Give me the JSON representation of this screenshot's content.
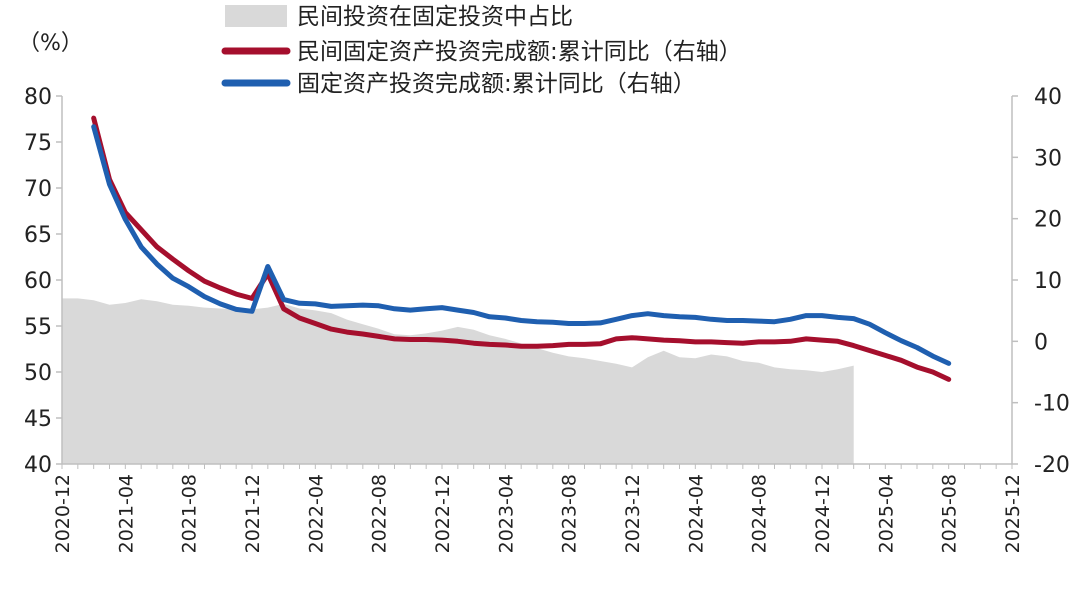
{
  "chart_data": {
    "type": "area+line",
    "unit_label": "（%）",
    "left_axis": {
      "min": 40,
      "max": 80,
      "ticks": [
        40,
        45,
        50,
        55,
        60,
        65,
        70,
        75,
        80
      ]
    },
    "right_axis": {
      "min": -20,
      "max": 40,
      "ticks": [
        -20,
        -10,
        0,
        10,
        20,
        30,
        40
      ]
    },
    "x_tick_labels": [
      "2020-12",
      "2021-04",
      "2021-08",
      "2021-12",
      "2022-04",
      "2022-08",
      "2022-12",
      "2023-04",
      "2023-08",
      "2023-12",
      "2024-04",
      "2024-08",
      "2024-12",
      "2025-04",
      "2025-08",
      "2025-12"
    ],
    "series": [
      {
        "name": "民间投资在固定投资中占比",
        "axis": "left",
        "type": "area",
        "color": "#d9d9d9",
        "start": "2020-12",
        "values": [
          58.0,
          58.0,
          57.8,
          57.3,
          57.5,
          57.9,
          57.7,
          57.3,
          57.2,
          57.0,
          56.9,
          56.8,
          56.8,
          57.0,
          57.4,
          56.9,
          56.7,
          56.4,
          55.7,
          55.2,
          54.7,
          54.1,
          54.0,
          54.2,
          54.5,
          54.9,
          54.6,
          54.0,
          53.6,
          53.1,
          52.6,
          52.1,
          51.7,
          51.5,
          51.2,
          50.9,
          50.5,
          51.6,
          52.3,
          51.6,
          51.5,
          51.9,
          51.7,
          51.2,
          51.0,
          50.5,
          50.3,
          50.2,
          50.0,
          50.3,
          50.7
        ]
      },
      {
        "name": "民间固定资产投资完成额:累计同比（右轴）",
        "axis": "right",
        "type": "line",
        "color": "#a50f2d",
        "start": "2021-02",
        "values": [
          36.4,
          26.4,
          21.0,
          18.2,
          15.4,
          13.4,
          11.5,
          9.8,
          8.7,
          7.7,
          7.0,
          11.0,
          5.3,
          3.8,
          2.9,
          2.0,
          1.5,
          1.2,
          0.8,
          0.4,
          0.3,
          0.3,
          0.2,
          0.0,
          -0.3,
          -0.5,
          -0.6,
          -0.8,
          -0.8,
          -0.7,
          -0.5,
          -0.5,
          -0.4,
          0.4,
          0.6,
          0.4,
          0.2,
          0.1,
          -0.1,
          -0.1,
          -0.2,
          -0.3,
          -0.1,
          -0.1,
          0.0,
          0.4,
          0.2,
          0.0,
          -0.7,
          -1.5,
          -2.3,
          -3.1,
          -4.2,
          -5.0,
          -6.2
        ]
      },
      {
        "name": "固定资产投资完成额:累计同比（右轴）",
        "axis": "right",
        "type": "line",
        "color": "#1f5fb0",
        "start": "2021-02",
        "values": [
          35.0,
          25.6,
          19.9,
          15.4,
          12.6,
          10.3,
          8.9,
          7.3,
          6.1,
          5.2,
          4.9,
          12.2,
          6.8,
          6.2,
          6.1,
          5.7,
          5.8,
          5.9,
          5.8,
          5.3,
          5.1,
          5.3,
          5.5,
          5.1,
          4.7,
          4.0,
          3.8,
          3.4,
          3.2,
          3.1,
          2.9,
          2.9,
          3.0,
          3.6,
          4.2,
          4.5,
          4.2,
          4.0,
          3.9,
          3.6,
          3.4,
          3.4,
          3.3,
          3.2,
          3.6,
          4.2,
          4.2,
          3.9,
          3.7,
          2.8,
          1.4,
          0.1,
          -1.0,
          -2.4,
          -3.6
        ]
      }
    ]
  }
}
